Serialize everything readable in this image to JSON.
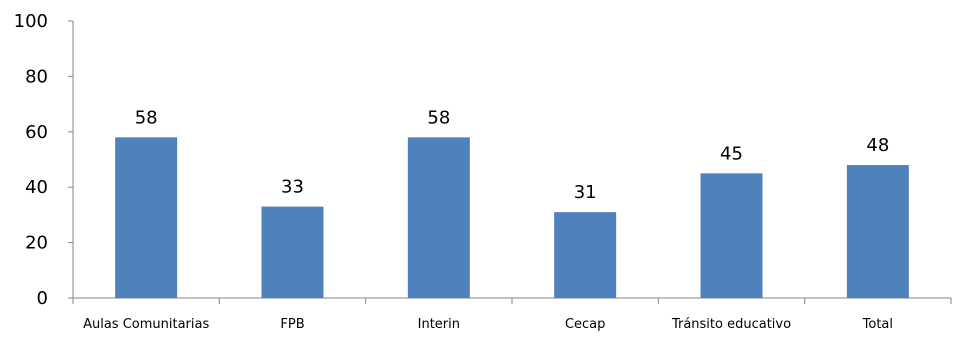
{
  "chart_data": {
    "type": "bar",
    "categories": [
      "Aulas Comunitarias",
      "FPB",
      "Interin",
      "Cecap",
      "Tránsito educativo",
      "Total"
    ],
    "values": [
      58,
      33,
      58,
      31,
      45,
      48
    ],
    "data_labels": [
      "58",
      "33",
      "58",
      "31",
      "45",
      "48"
    ],
    "ylim": [
      0,
      100
    ],
    "yticks": [
      0,
      20,
      40,
      60,
      80,
      100
    ],
    "ytick_labels": [
      "0",
      "20",
      "40",
      "60",
      "80",
      "100"
    ],
    "title": "",
    "xlabel": "",
    "ylabel": "",
    "grid": false,
    "legend": "none",
    "bar_color": "#4F81BD",
    "axis_color": "#868686"
  }
}
